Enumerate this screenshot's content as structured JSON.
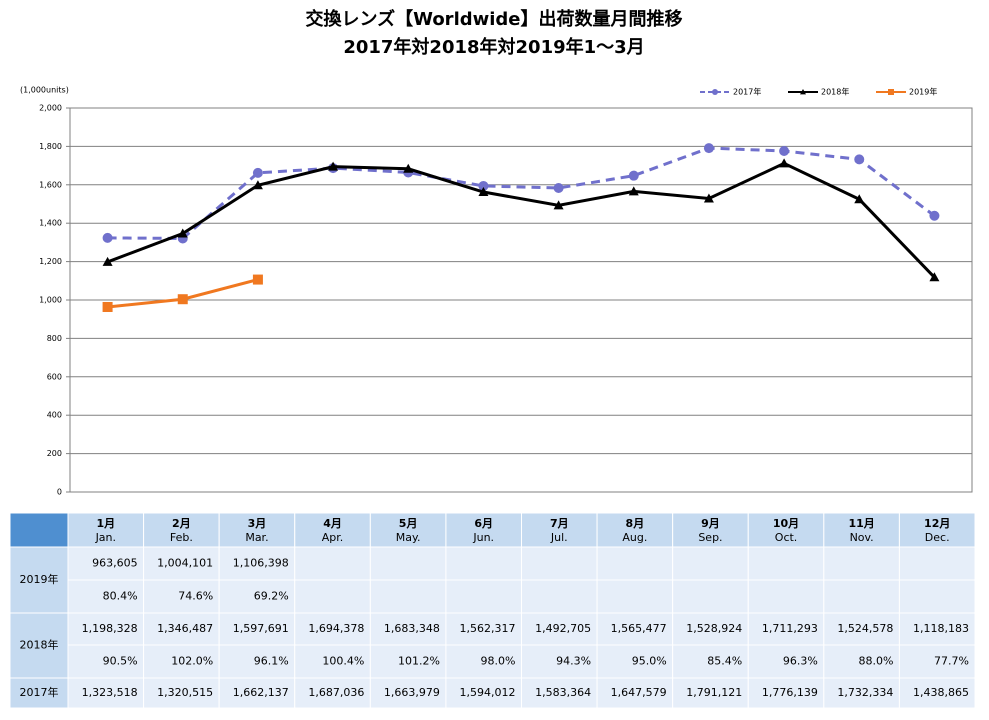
{
  "chart_data": {
    "type": "line",
    "title": "交換レンズ【Worldwide】出荷数量月間推移",
    "subtitle": "2017年対2018年対2019年1～3月",
    "y_label": "(1,000units)",
    "ylim": [
      0,
      2000
    ],
    "yticks": [
      0,
      200,
      400,
      600,
      800,
      {
        "value": 1000,
        "label": "1,000"
      },
      {
        "value": 1200,
        "label": "1,200"
      },
      {
        "value": 1400,
        "label": "1,400"
      },
      {
        "value": 1600,
        "label": "1,600"
      },
      {
        "value": 1800,
        "label": "1,800"
      },
      {
        "value": 2000,
        "label": "2,000"
      }
    ],
    "grid": true,
    "legend": "top-right",
    "series": [
      {
        "name": "2017年",
        "color": "#7070cc",
        "dash": true,
        "marker": "circle",
        "values": [
          1323.518,
          1320.515,
          1662.137,
          1687.036,
          1663.979,
          1594.012,
          1583.364,
          1647.579,
          1791.121,
          1776.139,
          1732.334,
          1438.865
        ]
      },
      {
        "name": "2018年",
        "color": "#000000",
        "dash": false,
        "marker": "triangle",
        "values": [
          1198.328,
          1346.487,
          1597.691,
          1694.378,
          1683.348,
          1562.317,
          1492.705,
          1565.477,
          1528.924,
          1711.293,
          1524.578,
          1118.183
        ]
      },
      {
        "name": "2019年",
        "color": "#f07820",
        "dash": false,
        "marker": "square",
        "values": [
          963.605,
          1004.101,
          1106.398
        ]
      }
    ]
  },
  "table": {
    "months": [
      {
        "ja": "1月",
        "en": "Jan."
      },
      {
        "ja": "2月",
        "en": "Feb."
      },
      {
        "ja": "3月",
        "en": "Mar."
      },
      {
        "ja": "4月",
        "en": "Apr."
      },
      {
        "ja": "5月",
        "en": "May."
      },
      {
        "ja": "6月",
        "en": "Jun."
      },
      {
        "ja": "7月",
        "en": "Jul."
      },
      {
        "ja": "8月",
        "en": "Aug."
      },
      {
        "ja": "9月",
        "en": "Sep."
      },
      {
        "ja": "10月",
        "en": "Oct."
      },
      {
        "ja": "11月",
        "en": "Nov."
      },
      {
        "ja": "12月",
        "en": "Dec."
      }
    ],
    "rows": [
      {
        "label": "2019年",
        "values": [
          "963,605",
          "1,004,101",
          "1,106,398"
        ],
        "ratios": [
          "80.4%",
          "74.6%",
          "69.2%"
        ]
      },
      {
        "label": "2018年",
        "values": [
          "1,198,328",
          "1,346,487",
          "1,597,691",
          "1,694,378",
          "1,683,348",
          "1,562,317",
          "1,492,705",
          "1,565,477",
          "1,528,924",
          "1,711,293",
          "1,524,578",
          "1,118,183"
        ],
        "ratios": [
          "90.5%",
          "102.0%",
          "96.1%",
          "100.4%",
          "101.2%",
          "98.0%",
          "94.3%",
          "95.0%",
          "85.4%",
          "96.3%",
          "88.0%",
          "77.7%"
        ]
      },
      {
        "label": "2017年",
        "values": [
          "1,323,518",
          "1,320,515",
          "1,662,137",
          "1,687,036",
          "1,663,979",
          "1,594,012",
          "1,583,364",
          "1,647,579",
          "1,791,121",
          "1,776,139",
          "1,732,334",
          "1,438,865"
        ]
      }
    ]
  }
}
